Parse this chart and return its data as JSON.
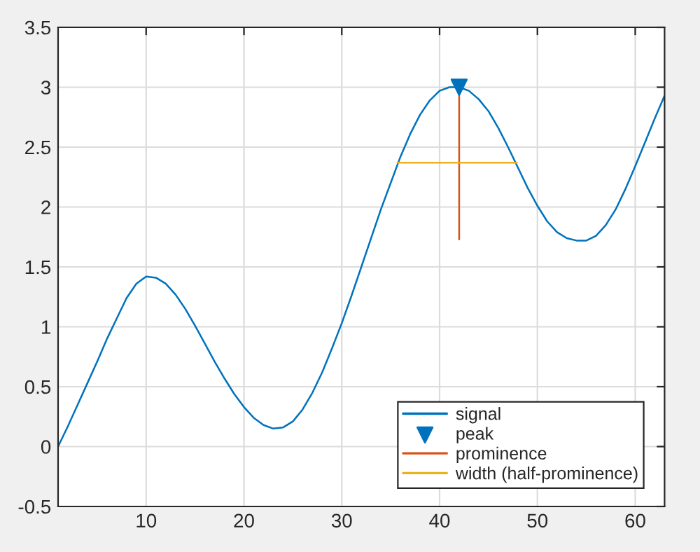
{
  "chart_data": {
    "type": "line",
    "xlim": [
      1,
      63
    ],
    "ylim": [
      -0.5,
      3.5
    ],
    "xticks": [
      10,
      20,
      30,
      40,
      50,
      60
    ],
    "yticks": [
      -0.5,
      0,
      0.5,
      1,
      1.5,
      2,
      2.5,
      3,
      3.5
    ],
    "grid": true,
    "legend": "bottom right",
    "series": [
      {
        "name": "signal",
        "color": "#0072bd",
        "x": [
          1,
          2,
          3,
          4,
          5,
          6,
          7,
          8,
          9,
          10,
          11,
          12,
          13,
          14,
          15,
          16,
          17,
          18,
          19,
          20,
          21,
          22,
          23,
          24,
          25,
          26,
          27,
          28,
          29,
          30,
          31,
          32,
          33,
          34,
          35,
          36,
          37,
          38,
          39,
          40,
          41,
          42,
          43,
          44,
          45,
          46,
          47,
          48,
          49,
          50,
          51,
          52,
          53,
          54,
          55,
          56,
          57,
          58,
          59,
          60,
          61,
          62,
          63
        ],
        "values": [
          0,
          0.17,
          0.35,
          0.53,
          0.71,
          0.9,
          1.07,
          1.24,
          1.36,
          1.42,
          1.41,
          1.36,
          1.27,
          1.15,
          1.01,
          0.86,
          0.71,
          0.57,
          0.44,
          0.33,
          0.24,
          0.18,
          0.15,
          0.16,
          0.21,
          0.31,
          0.45,
          0.62,
          0.82,
          1.03,
          1.26,
          1.5,
          1.74,
          1.98,
          2.2,
          2.42,
          2.61,
          2.77,
          2.89,
          2.97,
          3.0,
          3.0,
          2.97,
          2.9,
          2.8,
          2.66,
          2.5,
          2.33,
          2.16,
          2.01,
          1.88,
          1.79,
          1.74,
          1.72,
          1.72,
          1.76,
          1.85,
          1.98,
          2.15,
          2.34,
          2.54,
          2.74,
          2.93
        ]
      },
      {
        "name": "peak",
        "type": "scatter",
        "marker": "triangle",
        "color": "#0072bd",
        "x": [
          42
        ],
        "values": [
          3.0
        ]
      },
      {
        "name": "prominence",
        "color": "#d95319",
        "x": [
          42,
          42
        ],
        "values": [
          3.0,
          1.73
        ]
      },
      {
        "name": "width (half-prominence)",
        "color": "#edb120",
        "x": [
          35.7,
          47.9
        ],
        "values": [
          2.37,
          2.37
        ]
      }
    ]
  }
}
